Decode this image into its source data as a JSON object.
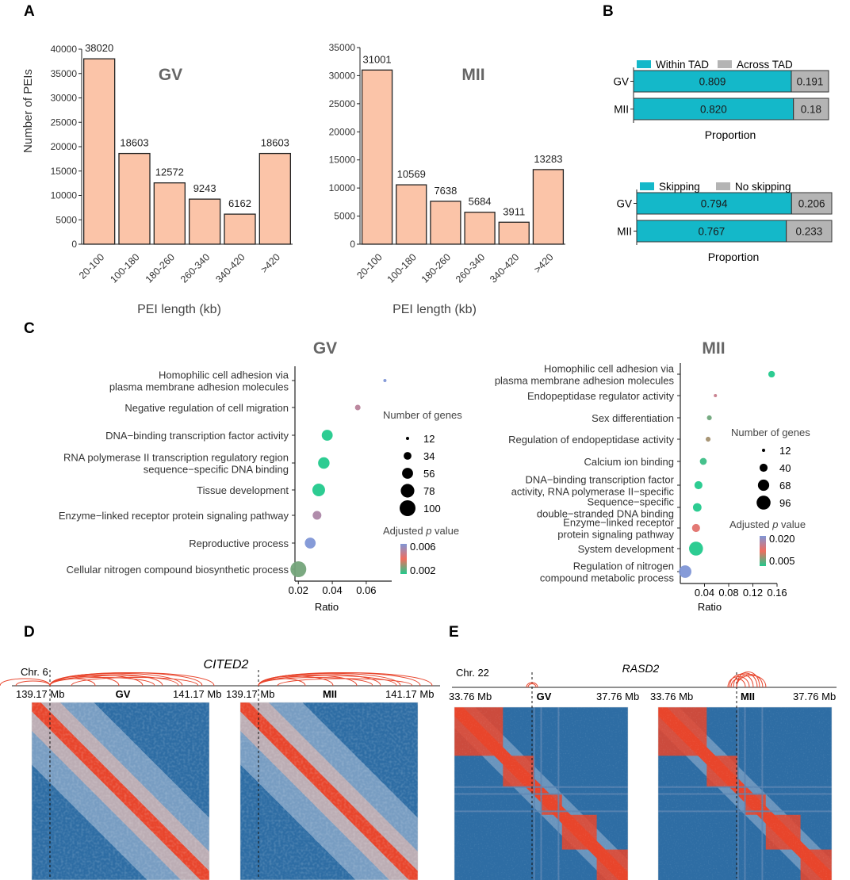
{
  "panels": {
    "A": "A",
    "B": "B",
    "C": "C",
    "D": "D",
    "E": "E"
  },
  "colors": {
    "bar_fill": "#FBC4A8",
    "bar_edge": "#222222",
    "teal": "#14B8C9",
    "grey": "#B4B4B4",
    "dot_low": "#22C98C",
    "dot_mid": "#F06D5E",
    "dot_high": "#7F96D6",
    "hic_bg": "#2E6DA4",
    "hic_mid": "#9FB7D2",
    "hic_red": "#E8452C",
    "arc": "#E8452C"
  },
  "chart_data": [
    {
      "id": "bar_gv",
      "type": "bar",
      "title": "GV",
      "ylabel": "Number of PEIs",
      "xlabel": "PEI length (kb)",
      "categories": [
        "20-100",
        "100-180",
        "180-260",
        "260-340",
        "340-420",
        ">420"
      ],
      "values": [
        38020,
        18603,
        12572,
        9243,
        6162,
        18603
      ],
      "ylim": [
        0,
        40000
      ],
      "yticks": [
        0,
        5000,
        10000,
        15000,
        20000,
        25000,
        30000,
        35000,
        40000
      ]
    },
    {
      "id": "bar_mii",
      "type": "bar",
      "title": "MII",
      "ylabel": "",
      "xlabel": "PEI length (kb)",
      "categories": [
        "20-100",
        "100-180",
        "180-260",
        "260-340",
        "340-420",
        ">420"
      ],
      "values": [
        31001,
        10569,
        7638,
        5684,
        3911,
        13283
      ],
      "ylim": [
        0,
        35000
      ],
      "yticks": [
        0,
        5000,
        10000,
        15000,
        20000,
        25000,
        30000,
        35000
      ]
    },
    {
      "id": "tad",
      "type": "stacked-bar",
      "xlabel": "Proportion",
      "legend": [
        "Within TAD",
        "Across TAD"
      ],
      "categories": [
        "GV",
        "MII"
      ],
      "series": [
        {
          "name": "Within TAD",
          "values": [
            0.809,
            0.82
          ]
        },
        {
          "name": "Across TAD",
          "values": [
            0.191,
            0.18
          ]
        }
      ],
      "labels": [
        [
          "0.809",
          "0.191"
        ],
        [
          "0.820",
          "0.18"
        ]
      ]
    },
    {
      "id": "skip",
      "type": "stacked-bar",
      "xlabel": "Proportion",
      "legend": [
        "Skipping",
        "No skipping"
      ],
      "categories": [
        "GV",
        "MII"
      ],
      "series": [
        {
          "name": "Skipping",
          "values": [
            0.794,
            0.767
          ]
        },
        {
          "name": "No skipping",
          "values": [
            0.206,
            0.233
          ]
        }
      ],
      "labels": [
        [
          "0.794",
          "0.206"
        ],
        [
          "0.767",
          "0.233"
        ]
      ]
    },
    {
      "id": "dot_gv",
      "type": "scatter",
      "title": "GV",
      "xlabel": "Ratio",
      "xlim": [
        0.018,
        0.075
      ],
      "xticks": [
        0.02,
        0.04,
        0.06
      ],
      "terms": [
        {
          "label": [
            "Homophilic cell adhesion via",
            "plasma membrane adhesion molecules"
          ],
          "ratio": 0.071,
          "genes": 12,
          "padj": 0.006
        },
        {
          "label": [
            "Negative regulation of cell migration"
          ],
          "ratio": 0.055,
          "genes": 22,
          "padj": 0.005
        },
        {
          "label": [
            "DNA−binding transcription factor activity"
          ],
          "ratio": 0.037,
          "genes": 56,
          "padj": 0.002
        },
        {
          "label": [
            "RNA polymerase II transcription regulatory region",
            "sequence−specific DNA binding"
          ],
          "ratio": 0.035,
          "genes": 60,
          "padj": 0.002
        },
        {
          "label": [
            "Tissue development"
          ],
          "ratio": 0.032,
          "genes": 70,
          "padj": 0.002
        },
        {
          "label": [
            "Enzyme−linked receptor protein signaling pathway"
          ],
          "ratio": 0.031,
          "genes": 40,
          "padj": 0.0052
        },
        {
          "label": [
            "Reproductive process"
          ],
          "ratio": 0.027,
          "genes": 55,
          "padj": 0.0062
        },
        {
          "label": [
            "Cellular nitrogen compound biosynthetic process"
          ],
          "ratio": 0.02,
          "genes": 100,
          "padj": 0.0028
        }
      ],
      "size_legend": {
        "title": "Number of genes",
        "values": [
          12,
          34,
          56,
          78,
          100
        ]
      },
      "color_legend": {
        "title": "Adjusted p value",
        "ticks": [
          "0.006",
          "0.002"
        ]
      }
    },
    {
      "id": "dot_mii",
      "type": "scatter",
      "title": "MII",
      "xlabel": "Ratio",
      "xlim": [
        0.0,
        0.16
      ],
      "xticks": [
        0.04,
        0.08,
        0.12,
        0.16
      ],
      "terms": [
        {
          "label": [
            "Homophilic cell adhesion via",
            "plasma membrane adhesion molecules"
          ],
          "ratio": 0.151,
          "genes": 30,
          "padj": 0.005
        },
        {
          "label": [
            "Endopeptidase regulator activity"
          ],
          "ratio": 0.058,
          "genes": 12,
          "padj": 0.016
        },
        {
          "label": [
            "Sex differentiation"
          ],
          "ratio": 0.048,
          "genes": 20,
          "padj": 0.008
        },
        {
          "label": [
            "Regulation of endopeptidase activity"
          ],
          "ratio": 0.046,
          "genes": 20,
          "padj": 0.01
        },
        {
          "label": [
            "Calcium ion binding"
          ],
          "ratio": 0.038,
          "genes": 32,
          "padj": 0.006
        },
        {
          "label": [
            "DNA−binding transcription factor",
            "activity, RNA polymerase II−specific"
          ],
          "ratio": 0.03,
          "genes": 40,
          "padj": 0.005
        },
        {
          "label": [
            "Sequence−specific",
            "double−stranded DNA binding"
          ],
          "ratio": 0.028,
          "genes": 44,
          "padj": 0.005
        },
        {
          "label": [
            "Enzyme−linked receptor",
            "protein signaling pathway"
          ],
          "ratio": 0.026,
          "genes": 40,
          "padj": 0.014
        },
        {
          "label": [
            "System development"
          ],
          "ratio": 0.026,
          "genes": 96,
          "padj": 0.005
        },
        {
          "label": [
            "Regulation of nitrogen",
            "compound metabolic process"
          ],
          "ratio": 0.008,
          "genes": 80,
          "padj": 0.021
        }
      ],
      "size_legend": {
        "title": "Number of genes",
        "values": [
          12,
          40,
          68,
          96
        ]
      },
      "color_legend": {
        "title": "Adjusted p value",
        "ticks": [
          "0.020",
          "0.005"
        ]
      }
    },
    {
      "id": "hic_d",
      "type": "heatmap",
      "gene": "CITED2",
      "chr": "Chr. 6",
      "left_coord": "139.17 Mb",
      "right_coord": "141.17 Mb",
      "maps": [
        "GV",
        "MII"
      ]
    },
    {
      "id": "hic_e",
      "type": "heatmap",
      "gene": "RASD2",
      "chr": "Chr. 22",
      "left_coord": "33.76 Mb",
      "right_coord": "37.76 Mb",
      "maps": [
        "GV",
        "MII"
      ]
    }
  ]
}
